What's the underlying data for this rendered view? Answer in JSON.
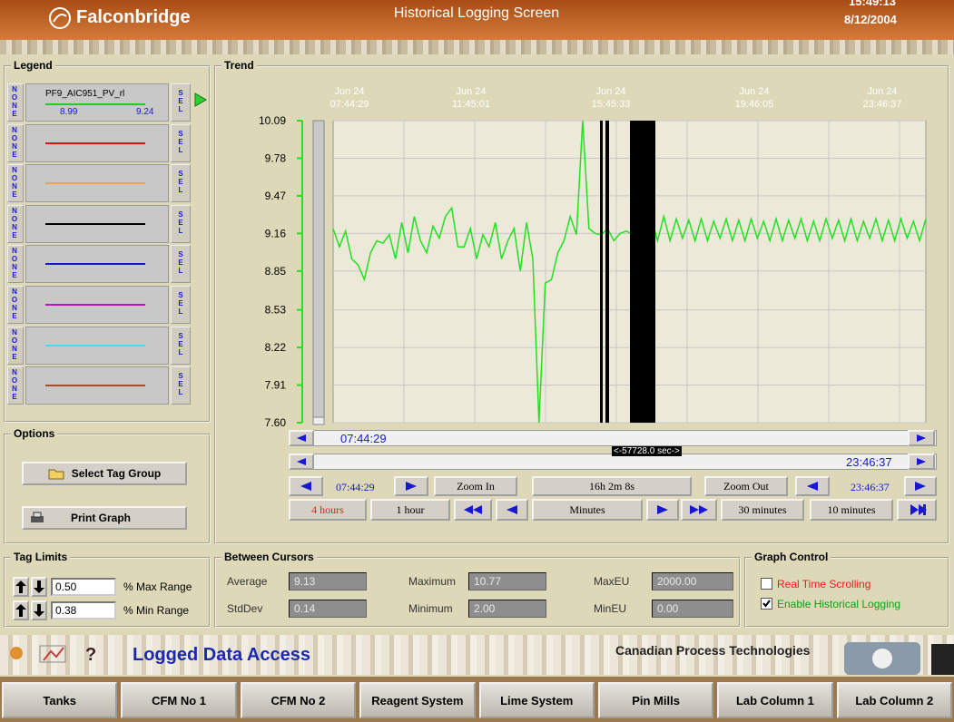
{
  "header": {
    "brand": "Falconbridge",
    "title": "Historical Logging Screen",
    "time": "15:49:13",
    "date": "8/12/2004"
  },
  "legend": {
    "title": "Legend",
    "rows": [
      {
        "none": "NONE",
        "sel": "SEL",
        "tag": "PF9_AIC951_PV_rl",
        "min": "8.99",
        "max": "9.24",
        "color": "#22cc22"
      },
      {
        "none": "NONE",
        "sel": "SEL",
        "color": "#e01010"
      },
      {
        "none": "NONE",
        "sel": "SEL",
        "color": "#f0a050"
      },
      {
        "none": "NONE",
        "sel": "SEL",
        "color": "#000000"
      },
      {
        "none": "NONE",
        "sel": "SEL",
        "color": "#1818d0"
      },
      {
        "none": "NONE",
        "sel": "SEL",
        "color": "#c010c0"
      },
      {
        "none": "NONE",
        "sel": "SEL",
        "color": "#40e0f0"
      },
      {
        "none": "NONE",
        "sel": "SEL",
        "color": "#a05030"
      }
    ]
  },
  "trend": {
    "title": "Trend",
    "xlabels": [
      {
        "date": "Jun 24",
        "time": "07:44:29"
      },
      {
        "date": "Jun 24",
        "time": "11:45:01"
      },
      {
        "date": "Jun 24",
        "time": "15:45:33"
      },
      {
        "date": "Jun 24",
        "time": "19:46:05"
      },
      {
        "date": "Jun 24",
        "time": "23:46:37"
      }
    ],
    "ylim": [
      7.6,
      10.09
    ],
    "yticks": [
      {
        "value": 7.6,
        "label": "7.60"
      },
      7.91,
      8.22,
      8.53,
      8.85,
      9.16,
      9.47,
      9.78,
      10.09
    ],
    "grid": true,
    "color": "#22e022",
    "values": [
      9.2,
      9.05,
      9.18,
      8.95,
      8.9,
      8.78,
      9.0,
      9.1,
      9.08,
      9.15,
      8.95,
      9.25,
      9.0,
      9.3,
      9.1,
      9.0,
      9.22,
      9.12,
      9.3,
      9.37,
      9.05,
      9.05,
      9.2,
      8.95,
      9.15,
      9.05,
      9.25,
      8.95,
      9.1,
      9.2,
      8.85,
      9.25,
      8.95,
      7.6,
      8.75,
      8.78,
      9.0,
      9.1,
      9.3,
      9.15,
      10.09,
      9.2,
      9.16,
      9.15,
      9.2,
      9.1,
      9.16,
      9.18,
      9.15,
      9.16,
      9.16,
      9.28,
      9.1,
      9.3,
      9.1,
      9.28,
      9.12,
      9.27,
      9.1,
      9.28,
      9.1,
      9.26,
      9.12,
      9.28,
      9.1,
      9.27,
      9.1,
      9.28,
      9.12,
      9.26,
      9.1,
      9.28,
      9.1,
      9.27,
      9.12,
      9.28,
      9.1,
      9.26,
      9.1,
      9.28,
      9.12,
      9.27,
      9.1,
      9.28,
      9.1,
      9.26,
      9.12,
      9.28,
      9.1,
      9.27,
      9.1,
      9.28,
      9.12,
      9.26,
      9.1,
      9.28
    ]
  },
  "scroll": {
    "start": "07:44:29",
    "span": "<-57728.0 sec->",
    "end": "23:46:37"
  },
  "zoom": {
    "start": "07:44:29",
    "zoom_in": "Zoom In",
    "duration": "16h 2m 8s",
    "zoom_out": "Zoom Out",
    "end": "23:46:37"
  },
  "ranges": [
    "4 hours",
    "1 hour",
    "Minutes",
    "30 minutes",
    "10 minutes"
  ],
  "options": {
    "title": "Options",
    "select": "Select Tag Group",
    "print": "Print Graph"
  },
  "tag_limits": {
    "title": "Tag Limits",
    "max": {
      "value": "0.50",
      "label": "% Max Range"
    },
    "min": {
      "value": "0.38",
      "label": "% Min Range"
    }
  },
  "cursors": {
    "title": "Between Cursors",
    "fields": [
      {
        "label": "Average",
        "value": "9.13"
      },
      {
        "label": "Maximum",
        "value": "10.77"
      },
      {
        "label": "MaxEU",
        "value": "2000.00"
      },
      {
        "label": "StdDev",
        "value": "0.14"
      },
      {
        "label": "Minimum",
        "value": "2.00"
      },
      {
        "label": "MinEU",
        "value": "0.00"
      }
    ]
  },
  "graph_control": {
    "title": "Graph Control",
    "options": [
      {
        "label": "Real Time Scrolling",
        "checked": false,
        "color": "#e02020"
      },
      {
        "label": "Enable Historical Logging",
        "checked": true,
        "color": "#10a010"
      }
    ]
  },
  "footer": {
    "title": "Logged Data Access",
    "company": "Canadian Process Technologies"
  },
  "nav": [
    "Tanks",
    "CFM No 1",
    "CFM No 2",
    "Reagent System",
    "Lime System",
    "Pin Mills",
    "Lab Column 1",
    "Lab Column 2"
  ]
}
